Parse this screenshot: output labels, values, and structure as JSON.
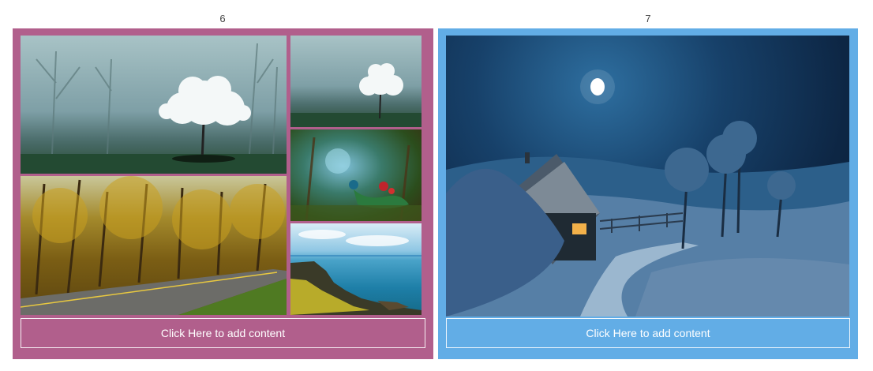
{
  "layouts": [
    {
      "number": "6",
      "frame_color": "#b15f8c",
      "caption": "Click Here to add content",
      "tiles": [
        "misty-tree-photo",
        "misty-tree-photo-small",
        "autumn-road-photo",
        "peacock-painting-photo",
        "coastal-sea-photo"
      ]
    },
    {
      "number": "7",
      "frame_color": "#62ade6",
      "caption": "Click Here to add content",
      "tiles": [
        "moonlit-cottage-photo"
      ]
    }
  ]
}
